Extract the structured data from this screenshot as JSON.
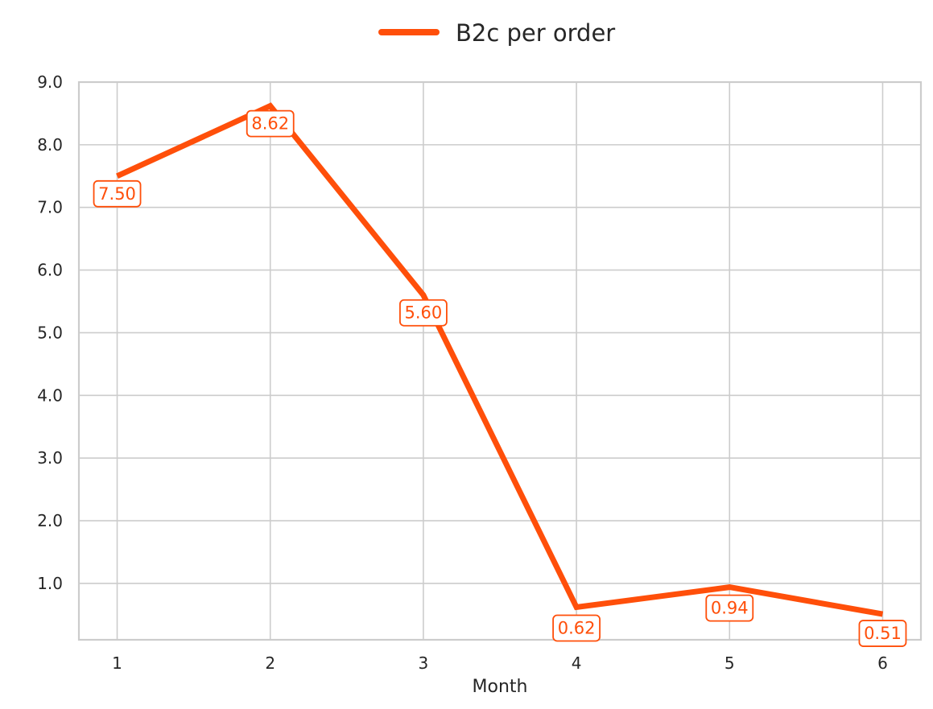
{
  "chart_data": {
    "type": "line",
    "title": "",
    "xlabel": "Month",
    "ylabel": "",
    "categories": [
      "1",
      "2",
      "3",
      "4",
      "5",
      "6"
    ],
    "x": [
      1,
      2,
      3,
      4,
      5,
      6
    ],
    "series": [
      {
        "name": "B2c per order",
        "values": [
          7.5,
          8.62,
          5.6,
          0.62,
          0.94,
          0.51
        ],
        "data_labels": [
          "7.50",
          "8.62",
          "5.60",
          "0.62",
          "0.94",
          "0.51"
        ],
        "color": "#ff4f0a"
      }
    ],
    "yticks": [
      "1.0",
      "2.0",
      "3.0",
      "4.0",
      "5.0",
      "6.0",
      "7.0",
      "8.0",
      "9.0"
    ],
    "ylim": [
      0.1,
      9.0
    ],
    "xlim": [
      0.75,
      6.25
    ],
    "grid": true,
    "legend_position": "top-center"
  }
}
